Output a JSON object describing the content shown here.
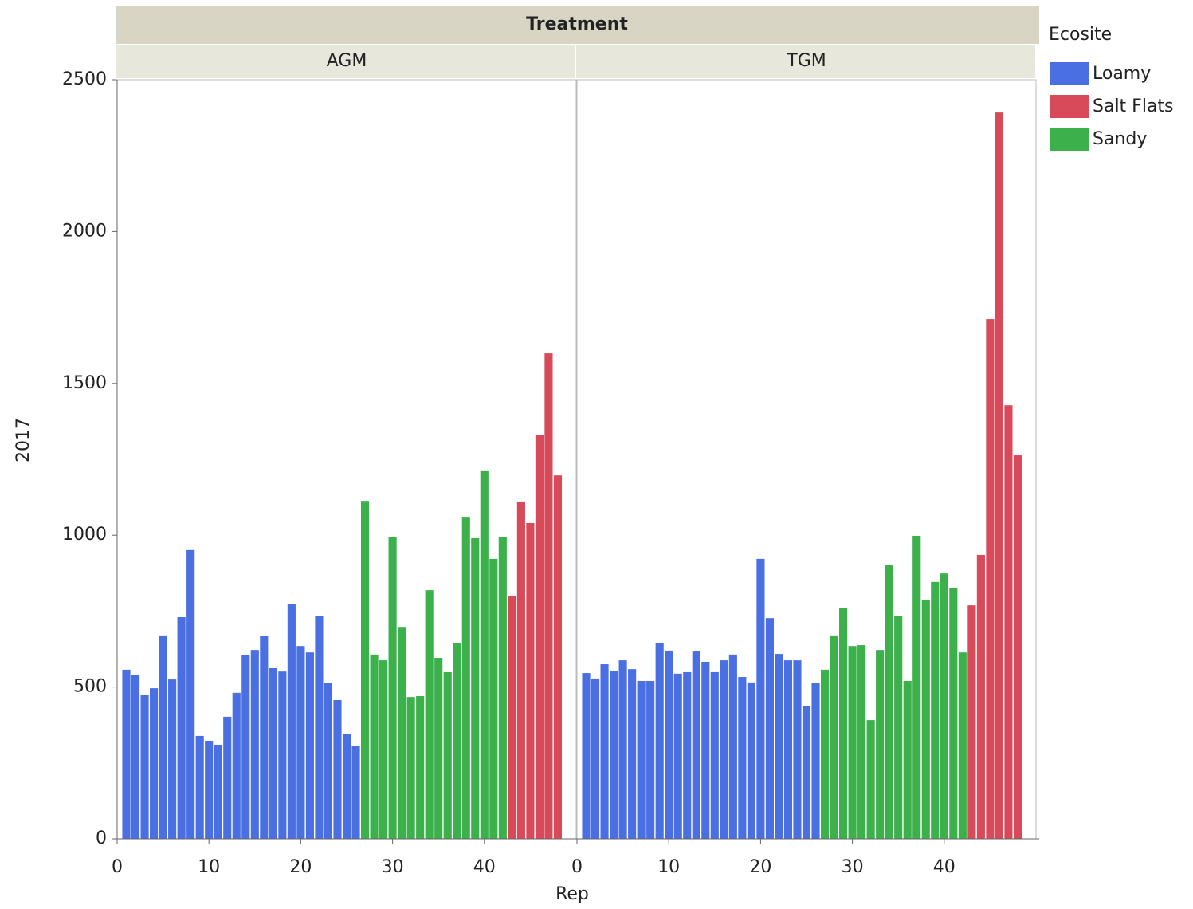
{
  "chart_data": {
    "type": "bar",
    "facet_title": "Treatment",
    "y_label": "2017",
    "x_label": "Rep",
    "legend_title": "Ecosite",
    "ylim": [
      0,
      2500
    ],
    "yticks": [
      0,
      500,
      1000,
      1500,
      2000,
      2500
    ],
    "xlim": [
      0,
      50
    ],
    "xticks": [
      0,
      10,
      20,
      30,
      40
    ],
    "series": [
      {
        "name": "Loamy",
        "color": "#4a6fe3"
      },
      {
        "name": "Salt Flats",
        "color": "#d8495a"
      },
      {
        "name": "Sandy",
        "color": "#3cb04b"
      }
    ],
    "panels": [
      {
        "name": "AGM",
        "groups": [
          {
            "x": [
              1,
              2,
              3,
              4,
              5,
              6,
              7,
              8,
              9,
              10,
              11,
              12,
              13,
              14,
              15,
              16,
              17,
              18,
              19,
              20,
              21,
              22,
              23,
              24,
              25,
              26
            ],
            "values": [
              557,
              541,
              475,
              496,
              670,
              525,
              730,
              951,
              339,
              323,
              310,
              402,
              481,
              604,
              622,
              667,
              562,
              551,
              772,
              635,
              614,
              733,
              512,
              457,
              344,
              307
            ]
          },
          {
            "x": [
              43,
              44,
              45,
              46,
              47,
              48
            ],
            "values": [
              801,
              1111,
              1040,
              1331,
              1599,
              1197
            ]
          },
          {
            "x": [
              27,
              28,
              29,
              30,
              31,
              32,
              33,
              34,
              35,
              36,
              37,
              38,
              39,
              40,
              41,
              42
            ],
            "values": [
              1113,
              607,
              588,
              995,
              698,
              467,
              470,
              819,
              596,
              549,
              646,
              1058,
              990,
              1211,
              922,
              995
            ]
          }
        ]
      },
      {
        "name": "TGM",
        "groups": [
          {
            "x": [
              1,
              2,
              3,
              4,
              5,
              6,
              7,
              8,
              9,
              10,
              11,
              12,
              13,
              14,
              15,
              16,
              17,
              18,
              19,
              20,
              21,
              22,
              23,
              24,
              25,
              26
            ],
            "values": [
              546,
              528,
              575,
              554,
              588,
              559,
              520,
              520,
              646,
              620,
              544,
              549,
              617,
              583,
              549,
              588,
              607,
              533,
              515,
              922,
              727,
              609,
              588,
              588,
              436,
              512
            ]
          },
          {
            "x": [
              43,
              44,
              45,
              46,
              47,
              48
            ],
            "values": [
              769,
              935,
              1712,
              2392,
              1428,
              1263
            ]
          },
          {
            "x": [
              27,
              28,
              29,
              30,
              31,
              32,
              33,
              34,
              35,
              36,
              37,
              38,
              39,
              40,
              41,
              42
            ],
            "values": [
              557,
              670,
              759,
              635,
              638,
              391,
              622,
              903,
              735,
              520,
              998,
              788,
              846,
              874,
              825,
              614
            ]
          }
        ]
      }
    ]
  }
}
